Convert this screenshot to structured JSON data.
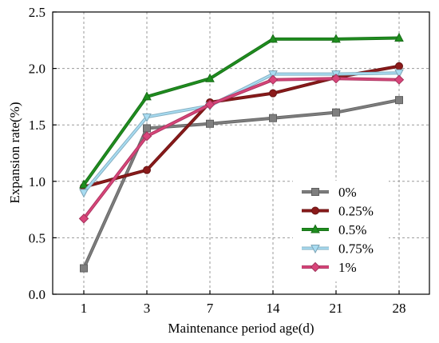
{
  "chart_data": {
    "type": "line",
    "title": "",
    "xlabel": "Maintenance period age(d)",
    "ylabel": "Expansion rate(%)",
    "categories": [
      "1",
      "3",
      "7",
      "14",
      "21",
      "28"
    ],
    "ylim": [
      0.0,
      2.5
    ],
    "yticks": [
      "0.0",
      "0.5",
      "1.0",
      "1.5",
      "2.0",
      "2.5"
    ],
    "grid": true,
    "legend_position": "bottom-right",
    "series": [
      {
        "name": "0%",
        "color": "#7f7f7f",
        "marker": "square",
        "values": [
          0.23,
          1.47,
          1.51,
          1.56,
          1.61,
          1.72
        ]
      },
      {
        "name": "0.25%",
        "color": "#8b1a1a",
        "marker": "circle",
        "values": [
          0.95,
          1.1,
          1.7,
          1.78,
          1.92,
          2.02
        ]
      },
      {
        "name": "0.5%",
        "color": "#1f8f1f",
        "marker": "triangle",
        "values": [
          0.97,
          1.75,
          1.91,
          2.26,
          2.26,
          2.27
        ]
      },
      {
        "name": "0.75%",
        "color": "#a8dcf2",
        "marker": "triangle-down",
        "values": [
          0.9,
          1.57,
          1.67,
          1.95,
          1.95,
          1.96
        ]
      },
      {
        "name": "1%",
        "color": "#d9457a",
        "marker": "diamond",
        "values": [
          0.67,
          1.4,
          1.68,
          1.9,
          1.91,
          1.9
        ]
      }
    ]
  }
}
